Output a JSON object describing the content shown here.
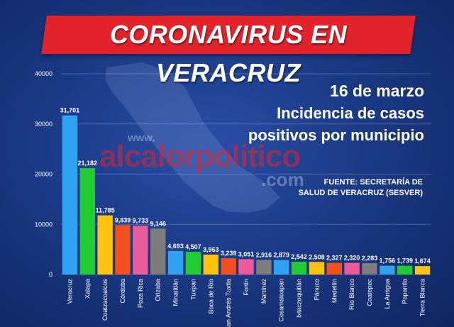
{
  "header": {
    "title": "CORONAVIRUS EN VERACRUZ"
  },
  "info": {
    "date": "16 de marzo",
    "line1": "Incidencia de casos",
    "line2": "positivos por municipio",
    "source_line1": "FUENTE: SECRETARÍA DE",
    "source_line2": "SALUD DE VERACRUZ (SESVER)"
  },
  "watermark": {
    "prefix": "www.",
    "name": "alcalorpolitico",
    "suffix": ".com"
  },
  "chart_data": {
    "type": "bar",
    "title": "",
    "xlabel": "",
    "ylabel": "",
    "ylim": [
      0,
      40000
    ],
    "yticks": [
      "0",
      "10000",
      "20000",
      "30000",
      "40000"
    ],
    "grid": true,
    "categories": [
      "Veracruz",
      "Xalapa",
      "Coatzacoalcos",
      "Córdoba",
      "Poza Rica",
      "Orizaba",
      "Minatitlán",
      "Tuxpan",
      "Boca de Río",
      "San Andrés Tuxtla",
      "Fortín",
      "Martínez",
      "Cosamaloapan",
      "Ixtaczoquitlán",
      "Pánuco",
      "Medellín",
      "Río Blanco",
      "Coatepec",
      "La Antigua",
      "Papantla",
      "Tierra Blanca"
    ],
    "values": [
      31701,
      21182,
      11785,
      9839,
      9733,
      9146,
      4693,
      4507,
      3963,
      3239,
      3051,
      2916,
      2879,
      2542,
      2508,
      2327,
      2320,
      2283,
      1756,
      1739,
      1674
    ],
    "value_labels": [
      "31,701",
      "21,182",
      "11,785",
      "9,839",
      "9,733",
      "9,146",
      "4,693",
      "4,507",
      "3,963",
      "3,239",
      "3,051",
      "2,916",
      "2,879",
      "2,542",
      "2,508",
      "2,327",
      "2,320",
      "2,283",
      "1,756",
      "1,739",
      "1,674"
    ],
    "colors": [
      "#2ea3f2",
      "#22cc33",
      "#ffc20e",
      "#f44f1f",
      "#ec5b9a",
      "#7d7d7d",
      "#2ea3f2",
      "#22cc33",
      "#ffc20e",
      "#f44f1f",
      "#ec5b9a",
      "#7d7d7d",
      "#2ea3f2",
      "#22cc33",
      "#ffc20e",
      "#f44f1f",
      "#ec5b9a",
      "#7d7d7d",
      "#2ea3f2",
      "#22cc33",
      "#ffc20e"
    ]
  }
}
